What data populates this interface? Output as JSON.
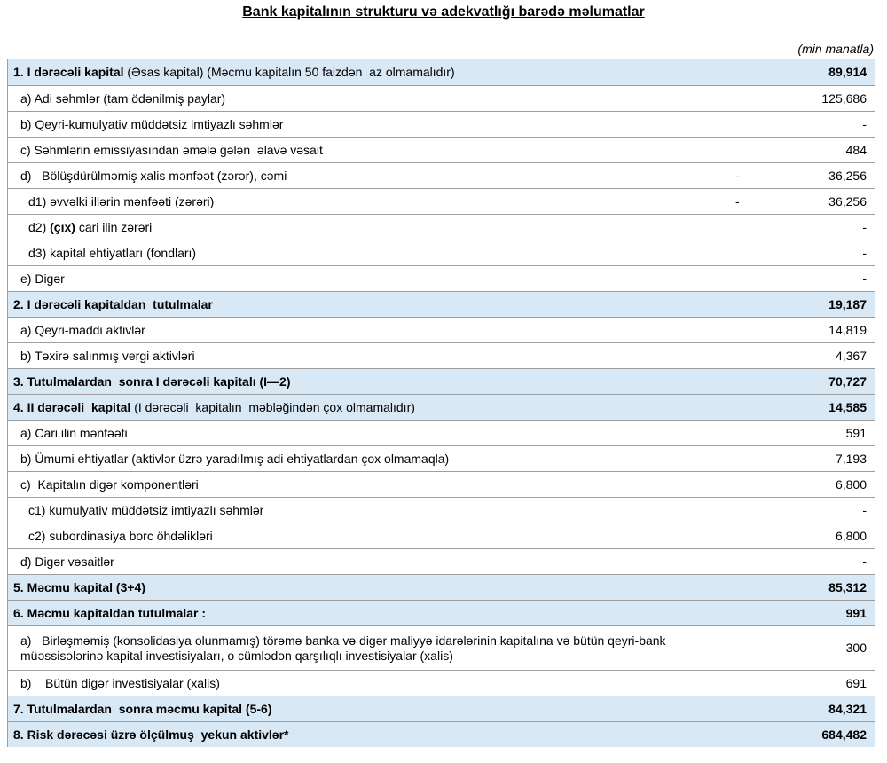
{
  "page": {
    "title": "Bank kapitalının strukturu və adekvatlığı barədə məlumatlar",
    "unit_note": "(min manatla)"
  },
  "colors": {
    "header_row_bg": "#d9e8f5",
    "border": "#9e9e9e",
    "text": "#000000"
  },
  "table": {
    "rows": [
      {
        "style": "header",
        "indent": 0,
        "parts": [
          {
            "t": "1. I dərəcəli kapital ",
            "b": true
          },
          {
            "t": "(Əsas kapital) (Məcmu kapitalın 50 faizdən  az olmamalıdır)",
            "b": false
          }
        ],
        "minus": "",
        "value": "89,914"
      },
      {
        "style": "normal",
        "indent": 1,
        "parts": [
          {
            "t": "a) Adi səhmlər (tam ödənilmiş paylar)",
            "b": false
          }
        ],
        "minus": "",
        "value": "125,686"
      },
      {
        "style": "normal",
        "indent": 1,
        "parts": [
          {
            "t": "b) Qeyri-kumulyativ müddətsiz imtiyazlı səhmlər",
            "b": false
          }
        ],
        "minus": "",
        "value": "-"
      },
      {
        "style": "normal",
        "indent": 1,
        "parts": [
          {
            "t": "c) Səhmlərin emissiyasından əmələ gələn  əlavə vəsait",
            "b": false
          }
        ],
        "minus": "",
        "value": "484"
      },
      {
        "style": "normal",
        "indent": 1,
        "parts": [
          {
            "t": "d)   Bölüşdürülməmiş xalis mənfəət (zərər), cəmi",
            "b": false
          }
        ],
        "minus": "-",
        "value": "36,256"
      },
      {
        "style": "normal",
        "indent": 2,
        "parts": [
          {
            "t": "d1) əvvəlki illərin mənfəəti (zərəri)",
            "b": false
          }
        ],
        "minus": "-",
        "value": "36,256"
      },
      {
        "style": "normal",
        "indent": 2,
        "parts": [
          {
            "t": "d2) ",
            "b": false
          },
          {
            "t": "(çıx)",
            "b": true
          },
          {
            "t": " cari ilin zərəri",
            "b": false
          }
        ],
        "minus": "",
        "value": "-"
      },
      {
        "style": "normal",
        "indent": 2,
        "parts": [
          {
            "t": "d3) kapital ehtiyatları (fondları)",
            "b": false
          }
        ],
        "minus": "",
        "value": "-"
      },
      {
        "style": "normal",
        "indent": 1,
        "parts": [
          {
            "t": "e) Digər",
            "b": false
          }
        ],
        "minus": "",
        "value": "-"
      },
      {
        "style": "header",
        "indent": 0,
        "parts": [
          {
            "t": "2. I dərəcəli kapitaldan  tutulmalar",
            "b": true
          }
        ],
        "minus": "",
        "value": "19,187"
      },
      {
        "style": "normal",
        "indent": 1,
        "parts": [
          {
            "t": "a) Qeyri-maddi aktivlər",
            "b": false
          }
        ],
        "minus": "",
        "value": "14,819"
      },
      {
        "style": "normal",
        "indent": 1,
        "parts": [
          {
            "t": "b) Təxirə salınmış vergi aktivləri",
            "b": false
          }
        ],
        "minus": "",
        "value": "4,367"
      },
      {
        "style": "header",
        "indent": 0,
        "parts": [
          {
            "t": "3. Tutulmalardan  sonra I dərəcəli kapitalı (I—2)",
            "b": true
          }
        ],
        "minus": "",
        "value": "70,727"
      },
      {
        "style": "header",
        "indent": 0,
        "parts": [
          {
            "t": "4. II dərəcəli  kapital ",
            "b": true
          },
          {
            "t": "(I dərəcəli  kapitalın  məbləğindən çox olmamalıdır)",
            "b": false
          }
        ],
        "minus": "",
        "value": "14,585"
      },
      {
        "style": "normal",
        "indent": 1,
        "parts": [
          {
            "t": "a) Cari ilin mənfəəti",
            "b": false
          }
        ],
        "minus": "",
        "value": "591"
      },
      {
        "style": "normal",
        "indent": 1,
        "parts": [
          {
            "t": "b) Ümumi ehtiyatlar (aktivlər üzrə yaradılmış adi ehtiyatlardan çox olmamaqla)",
            "b": false
          }
        ],
        "minus": "",
        "value": "7,193"
      },
      {
        "style": "normal",
        "indent": 1,
        "parts": [
          {
            "t": "c)  Kapitalın digər komponentləri",
            "b": false
          }
        ],
        "minus": "",
        "value": "6,800"
      },
      {
        "style": "normal",
        "indent": 2,
        "parts": [
          {
            "t": "c1) kumulyativ müddətsiz imtiyazlı səhmlər",
            "b": false
          }
        ],
        "minus": "",
        "value": "-"
      },
      {
        "style": "normal",
        "indent": 2,
        "parts": [
          {
            "t": "c2) subordinasiya borc öhdəlikləri",
            "b": false
          }
        ],
        "minus": "",
        "value": "6,800"
      },
      {
        "style": "normal",
        "indent": 1,
        "parts": [
          {
            "t": "d) Digər vəsaitlər",
            "b": false
          }
        ],
        "minus": "",
        "value": "-"
      },
      {
        "style": "header",
        "indent": 0,
        "parts": [
          {
            "t": "5. Məcmu kapital (3+4)",
            "b": true
          }
        ],
        "minus": "",
        "value": "85,312"
      },
      {
        "style": "header",
        "indent": 0,
        "parts": [
          {
            "t": "6. Məcmu kapitaldan tutulmalar :",
            "b": true
          }
        ],
        "minus": "",
        "value": "991"
      },
      {
        "style": "normal",
        "indent": 1,
        "tall": true,
        "parts": [
          {
            "t": "a)   Birləşməmiş (konsolidasiya olunmamış) törəmə banka və digər maliyyə idarələrinin kapitalına və bütün qeyri-bank müəssisələrinə kapital investisiyaları, o cümlədən qarşılıqlı investisiyalar (xalis)",
            "b": false
          }
        ],
        "minus": "",
        "value": "300"
      },
      {
        "style": "normal",
        "indent": 1,
        "parts": [
          {
            "t": "b)    Bütün digər investisiyalar (xalis)",
            "b": false
          }
        ],
        "minus": "",
        "value": "691"
      },
      {
        "style": "header",
        "indent": 0,
        "parts": [
          {
            "t": "7. Tutulmalardan  sonra məcmu kapital (5-6)",
            "b": true
          }
        ],
        "minus": "",
        "value": "84,321"
      },
      {
        "style": "header",
        "indent": 0,
        "parts": [
          {
            "t": "8. Risk dərəcəsi üzrə ölçülmuş  yekun aktivlər*",
            "b": true
          }
        ],
        "minus": "",
        "value": "684,482"
      }
    ]
  }
}
